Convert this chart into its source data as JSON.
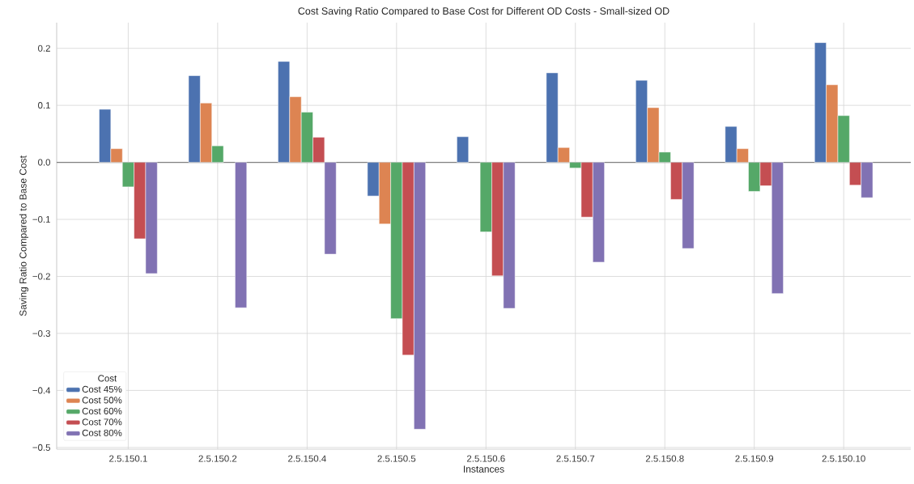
{
  "chart_data": {
    "type": "bar",
    "title": "Cost Saving Ratio Compared to Base Cost for Different OD Costs - Small-sized OD",
    "xlabel": "Instances",
    "ylabel": "Saving Ratio Compared to Base Cost",
    "legend_title": "Cost",
    "categories": [
      "2.5.150.1",
      "2.5.150.2",
      "2.5.150.4",
      "2.5.150.5",
      "2.5.150.6",
      "2.5.150.7",
      "2.5.150.8",
      "2.5.150.9",
      "2.5.150.10"
    ],
    "series": [
      {
        "name": "Cost 45%",
        "color": "#4c72b0",
        "values": [
          0.093,
          0.152,
          0.177,
          -0.059,
          0.045,
          0.157,
          0.144,
          0.063,
          0.21
        ]
      },
      {
        "name": "Cost 50%",
        "color": "#dd8452",
        "values": [
          0.024,
          0.104,
          0.115,
          -0.108,
          null,
          0.026,
          0.096,
          0.024,
          0.136
        ]
      },
      {
        "name": "Cost 60%",
        "color": "#55a868",
        "values": [
          -0.043,
          0.029,
          0.088,
          -0.274,
          -0.122,
          -0.01,
          0.018,
          -0.051,
          0.082
        ]
      },
      {
        "name": "Cost 70%",
        "color": "#c44e52",
        "values": [
          -0.134,
          null,
          0.044,
          -0.338,
          -0.199,
          -0.096,
          -0.065,
          -0.041,
          -0.04
        ]
      },
      {
        "name": "Cost 80%",
        "color": "#8172b3",
        "values": [
          -0.195,
          -0.255,
          -0.161,
          -0.468,
          -0.256,
          -0.175,
          -0.151,
          -0.23,
          -0.062
        ]
      }
    ],
    "ylim": [
      -0.503,
      0.245
    ],
    "yticks": [
      {
        "value": -0.5,
        "label": "−0.5"
      },
      {
        "value": -0.4,
        "label": "−0.4"
      },
      {
        "value": -0.3,
        "label": "−0.3"
      },
      {
        "value": -0.2,
        "label": "−0.2"
      },
      {
        "value": -0.1,
        "label": "−0.1"
      },
      {
        "value": 0,
        "label": "0.0"
      },
      {
        "value": 0.1,
        "label": "0.1"
      },
      {
        "value": 0.2,
        "label": "0.2"
      }
    ],
    "ref_lines": [
      {
        "axis": "y",
        "value": 0,
        "color": "#808080"
      }
    ],
    "grid": true,
    "legend": "bottom left"
  }
}
